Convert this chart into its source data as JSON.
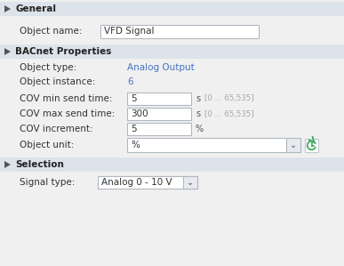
{
  "bg_color": "#f0f0f0",
  "section_header_bg": "#dde3ea",
  "input_box_bg": "#ffffff",
  "input_box_border": "#a0a0a0",
  "text_color_dark": "#333333",
  "text_color_blue": "#4472c4",
  "text_color_gray": "#a0a0a0",
  "text_color_green": "#3daa5e",
  "section1_title": "General",
  "section2_title": "BACnet Properties",
  "section3_title": "Selection",
  "field_object_name_label": "Object name:",
  "field_object_name_value": "VFD Signal",
  "field_object_type_label": "Object type:",
  "field_object_type_value": "Analog Output",
  "field_object_instance_label": "Object instance:",
  "field_object_instance_value": "6",
  "field_cov_min_label": "COV min send time:",
  "field_cov_min_value": "5",
  "field_cov_min_unit": "s",
  "field_cov_min_range": "[0 ... 65,535]",
  "field_cov_max_label": "COV max send time:",
  "field_cov_max_value": "300",
  "field_cov_max_unit": "s",
  "field_cov_max_range": "[0 ... 65,535]",
  "field_cov_inc_label": "COV increment:",
  "field_cov_inc_value": "5",
  "field_cov_inc_unit": "%",
  "field_obj_unit_label": "Object unit:",
  "field_obj_unit_value": "%",
  "field_signal_type_label": "Signal type:",
  "field_signal_type_value": "Analog 0 - 10 V"
}
